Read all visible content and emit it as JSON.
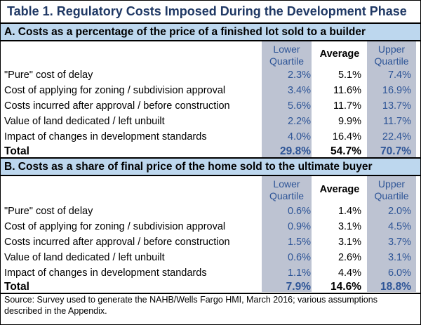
{
  "table_title": "Table 1.  Regulatory Costs Imposed During the Development Phase",
  "headers": {
    "lower": [
      "Lower",
      "Quartile"
    ],
    "average": "Average",
    "upper": [
      "Upper",
      "Quartile"
    ]
  },
  "sections": [
    {
      "title": "A. Costs as a percentage of the price of a finished lot sold to a builder",
      "rows": [
        {
          "label": "\"Pure\" cost of delay",
          "lower": "2.3%",
          "average": "5.1%",
          "upper": "7.4%"
        },
        {
          "label": "Cost of applying for zoning / subdivision approval",
          "lower": "3.4%",
          "average": "11.6%",
          "upper": "16.9%"
        },
        {
          "label": "Costs incurred after approval / before construction",
          "lower": "5.6%",
          "average": "11.7%",
          "upper": "13.7%"
        },
        {
          "label": "Value of land dedicated / left unbuilt",
          "lower": "2.2%",
          "average": "9.9%",
          "upper": "11.7%"
        },
        {
          "label": "Impact of changes in development standards",
          "lower": "4.0%",
          "average": "16.4%",
          "upper": "22.4%"
        }
      ],
      "total": {
        "label": "Total",
        "lower": "29.8%",
        "average": "54.7%",
        "upper": "70.7%"
      }
    },
    {
      "title": "B.  Costs as a share of final price of the home sold to the ultimate buyer",
      "rows": [
        {
          "label": "\"Pure\" cost of delay",
          "lower": "0.6%",
          "average": "1.4%",
          "upper": "2.0%"
        },
        {
          "label": "Cost of applying for zoning / subdivision approval",
          "lower": "0.9%",
          "average": "3.1%",
          "upper": "4.5%"
        },
        {
          "label": "Costs incurred after approval / before construction",
          "lower": "1.5%",
          "average": "3.1%",
          "upper": "3.7%"
        },
        {
          "label": "Value of land dedicated / left unbuilt",
          "lower": "0.6%",
          "average": "2.6%",
          "upper": "3.1%"
        },
        {
          "label": "Impact of changes in development standards",
          "lower": "1.1%",
          "average": "4.4%",
          "upper": "6.0%"
        }
      ],
      "total": {
        "label": "Total",
        "lower": "7.9%",
        "average": "14.6%",
        "upper": "18.8%"
      }
    }
  ],
  "source": "Source: Survey used to generate the NAHB/Wells Fargo HMI, March 2016; various assumptions described in the Appendix.",
  "colors": {
    "title": "#1f3864",
    "section_bar": "#bdd7ee",
    "quartile_shade": "#bdc3d2",
    "quartile_text": "#2e5597"
  }
}
